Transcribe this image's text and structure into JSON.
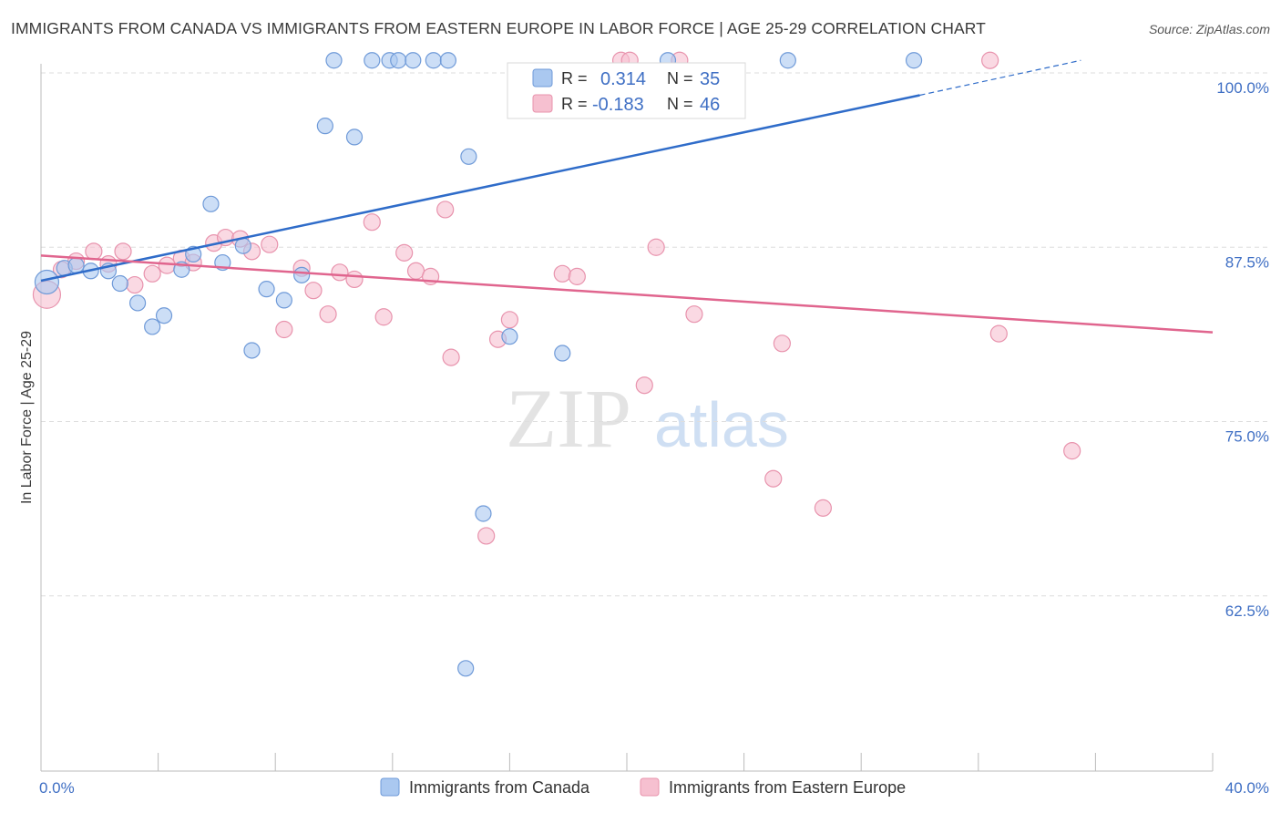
{
  "title": "IMMIGRANTS FROM CANADA VS IMMIGRANTS FROM EASTERN EUROPE IN LABOR FORCE | AGE 25-29 CORRELATION CHART",
  "source": "Source: ZipAtlas.com",
  "watermark": {
    "zip": "ZIP",
    "atlas": "atlas"
  },
  "colors": {
    "canada_fill": "#aac8f0",
    "canada_stroke": "#6f9ad8",
    "canada_line": "#2f6cc9",
    "ee_fill": "#f6c0d0",
    "ee_stroke": "#e893ad",
    "ee_line": "#e0658e",
    "axis_text": "#3f6fc4",
    "grid": "#dedede"
  },
  "legend": {
    "r_label": "R =",
    "n_label": "N =",
    "rows": [
      {
        "r": "0.314",
        "n": "35"
      },
      {
        "r": "-0.183",
        "n": "46"
      }
    ]
  },
  "bottom_legend": [
    {
      "label": "Immigrants from Canada"
    },
    {
      "label": "Immigrants from Eastern Europe"
    }
  ],
  "chart_data": {
    "type": "scatter",
    "title": "IMMIGRANTS FROM CANADA VS IMMIGRANTS FROM EASTERN EUROPE IN LABOR FORCE | AGE 25-29 CORRELATION CHART",
    "xlabel": "",
    "ylabel": "In Labor Force | Age 25-29",
    "xlim": [
      0,
      40
    ],
    "ylim": [
      50,
      101
    ],
    "x_tick_labels": [
      "0.0%",
      "40.0%"
    ],
    "y_ticks": [
      62.5,
      75.0,
      87.5,
      100.0
    ],
    "y_tick_labels": [
      "62.5%",
      "75.0%",
      "87.5%",
      "100.0%"
    ],
    "grid": true,
    "series": [
      {
        "name": "Immigrants from Canada",
        "r": 0.314,
        "n": 35,
        "trend": {
          "x0": 0.0,
          "y0": 85.1,
          "x1": 30.0,
          "y1": 98.4,
          "dash_to_x": 35.5,
          "dash_to_y": 100.9
        },
        "points": [
          [
            0.2,
            85.0
          ],
          [
            0.8,
            86.0
          ],
          [
            1.2,
            86.2
          ],
          [
            1.7,
            85.8
          ],
          [
            2.3,
            85.8
          ],
          [
            2.7,
            84.9
          ],
          [
            3.3,
            83.5
          ],
          [
            3.8,
            81.8
          ],
          [
            4.2,
            82.6
          ],
          [
            4.8,
            85.9
          ],
          [
            5.2,
            87.0
          ],
          [
            5.8,
            90.6
          ],
          [
            6.2,
            86.4
          ],
          [
            6.9,
            87.6
          ],
          [
            7.2,
            80.1
          ],
          [
            7.7,
            84.5
          ],
          [
            8.3,
            83.7
          ],
          [
            8.9,
            85.5
          ],
          [
            10.0,
            100.9
          ],
          [
            9.7,
            96.2
          ],
          [
            10.7,
            95.4
          ],
          [
            11.3,
            100.9
          ],
          [
            11.9,
            100.9
          ],
          [
            12.2,
            100.9
          ],
          [
            12.7,
            100.9
          ],
          [
            13.4,
            100.9
          ],
          [
            13.9,
            100.9
          ],
          [
            14.6,
            94.0
          ],
          [
            14.5,
            57.3
          ],
          [
            15.1,
            68.4
          ],
          [
            16.0,
            81.1
          ],
          [
            17.8,
            79.9
          ],
          [
            21.4,
            100.9
          ],
          [
            25.5,
            100.9
          ],
          [
            29.8,
            100.9
          ]
        ]
      },
      {
        "name": "Immigrants from Eastern Europe",
        "r": -0.183,
        "n": 46,
        "trend": {
          "x0": 0.0,
          "y0": 86.9,
          "x1": 40.0,
          "y1": 81.4
        },
        "points": [
          [
            0.2,
            84.1
          ],
          [
            0.7,
            85.9
          ],
          [
            1.2,
            86.5
          ],
          [
            1.8,
            87.2
          ],
          [
            2.3,
            86.3
          ],
          [
            2.8,
            87.2
          ],
          [
            3.2,
            84.8
          ],
          [
            3.8,
            85.6
          ],
          [
            4.3,
            86.2
          ],
          [
            4.8,
            86.7
          ],
          [
            5.2,
            86.4
          ],
          [
            5.9,
            87.8
          ],
          [
            6.3,
            88.2
          ],
          [
            6.8,
            88.1
          ],
          [
            7.2,
            87.2
          ],
          [
            7.8,
            87.7
          ],
          [
            8.3,
            81.6
          ],
          [
            8.9,
            86.0
          ],
          [
            9.3,
            84.4
          ],
          [
            9.8,
            82.7
          ],
          [
            10.2,
            85.7
          ],
          [
            10.7,
            85.2
          ],
          [
            11.3,
            89.3
          ],
          [
            11.7,
            82.5
          ],
          [
            12.4,
            87.1
          ],
          [
            12.8,
            85.8
          ],
          [
            13.3,
            85.4
          ],
          [
            13.8,
            90.2
          ],
          [
            14.0,
            79.6
          ],
          [
            15.2,
            66.8
          ],
          [
            15.6,
            80.9
          ],
          [
            16.0,
            82.3
          ],
          [
            17.8,
            85.6
          ],
          [
            18.3,
            85.4
          ],
          [
            19.8,
            100.9
          ],
          [
            20.6,
            77.6
          ],
          [
            21.0,
            87.5
          ],
          [
            21.8,
            100.9
          ],
          [
            22.3,
            82.7
          ],
          [
            25.0,
            70.9
          ],
          [
            25.3,
            80.6
          ],
          [
            26.7,
            68.8
          ],
          [
            32.4,
            100.9
          ],
          [
            32.7,
            81.3
          ],
          [
            35.2,
            72.9
          ],
          [
            20.1,
            100.9
          ]
        ]
      }
    ]
  }
}
